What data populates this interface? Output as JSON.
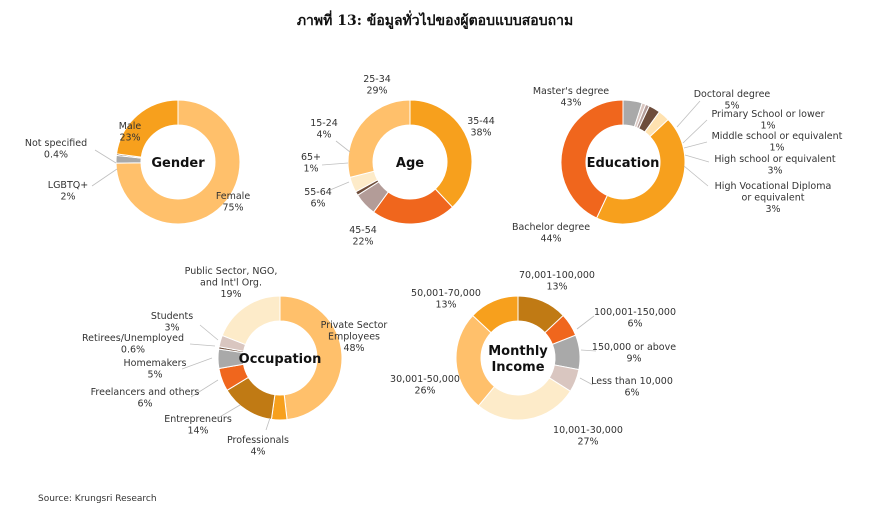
{
  "title": "ภาพที่ 13: ข้อมูลทั่วไปของผู้ตอบแบบสอบถาม",
  "source": "Source: Krungsri Research",
  "chart_data": [
    {
      "type": "pie",
      "center_label": [
        "Gender"
      ],
      "slices": [
        {
          "label": [
            "Female"
          ],
          "value": 75,
          "value_text": "75%",
          "color": "#FFC06B"
        },
        {
          "label": [
            "LGBTQ+"
          ],
          "value": 2,
          "value_text": "2%",
          "color": "#A9A9A9"
        },
        {
          "label": [
            "Not specified"
          ],
          "value": 0.4,
          "value_text": "0.4%",
          "color": "#6E4D3B"
        },
        {
          "label": [
            "Male"
          ],
          "value": 23,
          "value_text": "23%",
          "color": "#F7A01D"
        }
      ]
    },
    {
      "type": "pie",
      "center_label": [
        "Age"
      ],
      "slices": [
        {
          "label": [
            "35-44"
          ],
          "value": 38,
          "value_text": "38%",
          "color": "#F7A01D"
        },
        {
          "label": [
            "45-54"
          ],
          "value": 22,
          "value_text": "22%",
          "color": "#F0661D"
        },
        {
          "label": [
            "55-64"
          ],
          "value": 6,
          "value_text": "6%",
          "color": "#B39C98"
        },
        {
          "label": [
            "65+"
          ],
          "value": 1,
          "value_text": "1%",
          "color": "#6E4D3B"
        },
        {
          "label": [
            "15-24"
          ],
          "value": 4,
          "value_text": "4%",
          "color": "#FDEBC9"
        },
        {
          "label": [
            "25-34"
          ],
          "value": 29,
          "value_text": "29%",
          "color": "#FFC06B"
        }
      ]
    },
    {
      "type": "pie",
      "center_label": [
        "Education"
      ],
      "slices": [
        {
          "label": [
            "Doctoral degree"
          ],
          "value": 5,
          "value_text": "5%",
          "color": "#A9A9A9"
        },
        {
          "label": [
            "Primary School or lower"
          ],
          "value": 1,
          "value_text": "1%",
          "color": "#D9C6C0"
        },
        {
          "label": [
            "Middle school or equivalent"
          ],
          "value": 1,
          "value_text": "1%",
          "color": "#B39C98"
        },
        {
          "label": [
            "High school or equivalent"
          ],
          "value": 3,
          "value_text": "3%",
          "color": "#6E4D3B"
        },
        {
          "label": [
            "High Vocational Diploma",
            "or equivalent"
          ],
          "value": 3,
          "value_text": "3%",
          "color": "#FFE2B0"
        },
        {
          "label": [
            "Bachelor degree"
          ],
          "value": 44,
          "value_text": "44%",
          "color": "#F7A01D"
        },
        {
          "label": [
            "Master's degree"
          ],
          "value": 43,
          "value_text": "43%",
          "color": "#F0661D"
        }
      ]
    },
    {
      "type": "pie",
      "center_label": [
        "Occupation"
      ],
      "slices": [
        {
          "label": [
            "Private Sector",
            "Employees"
          ],
          "value": 48,
          "value_text": "48%",
          "color": "#FFC06B"
        },
        {
          "label": [
            "Professionals"
          ],
          "value": 4,
          "value_text": "4%",
          "color": "#F7A01D"
        },
        {
          "label": [
            "Entrepreneurs"
          ],
          "value": 14,
          "value_text": "14%",
          "color": "#C07A14"
        },
        {
          "label": [
            "Freelancers and others"
          ],
          "value": 6,
          "value_text": "6%",
          "color": "#F0661D"
        },
        {
          "label": [
            "Homemakers"
          ],
          "value": 5,
          "value_text": "5%",
          "color": "#A9A9A9"
        },
        {
          "label": [
            "Retirees/Unemployed"
          ],
          "value": 0.6,
          "value_text": "0.6%",
          "color": "#6E4D3B"
        },
        {
          "label": [
            "Students"
          ],
          "value": 3,
          "value_text": "3%",
          "color": "#D9C6C0"
        },
        {
          "label": [
            "Public Sector, NGO,",
            "and Int'l Org."
          ],
          "value": 19,
          "value_text": "19%",
          "color": "#FDEBC9"
        }
      ]
    },
    {
      "type": "pie",
      "center_label": [
        "Monthly",
        "Income"
      ],
      "slices": [
        {
          "label": [
            "70,001-100,000"
          ],
          "value": 13,
          "value_text": "13%",
          "color": "#C07A14"
        },
        {
          "label": [
            "100,001-150,000"
          ],
          "value": 6,
          "value_text": "6%",
          "color": "#F0661D"
        },
        {
          "label": [
            "150,000 or above"
          ],
          "value": 9,
          "value_text": "9%",
          "color": "#A9A9A9"
        },
        {
          "label": [
            "Less than 10,000"
          ],
          "value": 6,
          "value_text": "6%",
          "color": "#D9C6C0"
        },
        {
          "label": [
            "10,001-30,000"
          ],
          "value": 27,
          "value_text": "27%",
          "color": "#FDEBC9"
        },
        {
          "label": [
            "30,001-50,000"
          ],
          "value": 26,
          "value_text": "26%",
          "color": "#FFC06B"
        },
        {
          "label": [
            "50,001-70,000"
          ],
          "value": 13,
          "value_text": "13%",
          "color": "#F7A01D"
        }
      ]
    }
  ]
}
